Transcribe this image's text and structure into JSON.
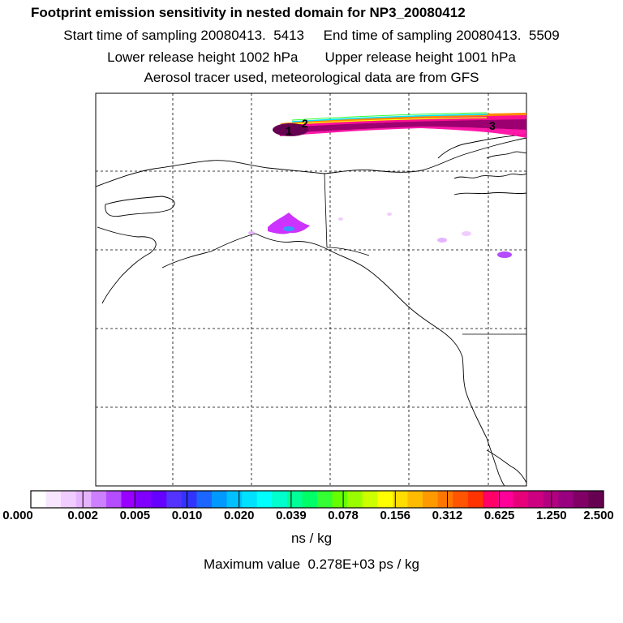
{
  "header": {
    "title": "Footprint emission sensitivity in nested domain for NP3_20080412",
    "line_sampling": "Start time of sampling 20080413.  5413     End time of sampling 20080413.  5509",
    "line_release": "Lower release height 1002 hPa       Upper release height 1001 hPa",
    "line_tracer": "Aerosol tracer used, meteorological data are from GFS"
  },
  "map": {
    "region": "Alaska and northwestern Canada",
    "grid": "dashed lat/lon lines",
    "plume_markers": [
      "1",
      "2",
      "3"
    ]
  },
  "colorbar": {
    "labels": [
      "0.000",
      "0.002",
      "0.005",
      "0.010",
      "0.020",
      "0.039",
      "0.078",
      "0.156",
      "0.312",
      "0.625",
      "1.250",
      "2.500"
    ],
    "colors": [
      "#ffffff",
      "#f8e6ff",
      "#f0ccff",
      "#e6b3ff",
      "#cc80ff",
      "#b34dff",
      "#9900ff",
      "#8000ff",
      "#6600ff",
      "#5533ff",
      "#3333ff",
      "#1a66ff",
      "#0099ff",
      "#00c0ff",
      "#00e0ff",
      "#00ffff",
      "#00ffcc",
      "#00ff99",
      "#00ff66",
      "#33ff33",
      "#66ff00",
      "#99ff00",
      "#ccff00",
      "#ffff00",
      "#ffdd00",
      "#ffbb00",
      "#ff9900",
      "#ff7700",
      "#ff5500",
      "#ff3300",
      "#ff0066",
      "#ff0099",
      "#e6007a",
      "#cc0080",
      "#b30080",
      "#990080",
      "#800066",
      "#660050"
    ],
    "units": "ns / kg"
  },
  "footer": {
    "max_value": "Maximum value  0.278E+03 ps / kg"
  }
}
